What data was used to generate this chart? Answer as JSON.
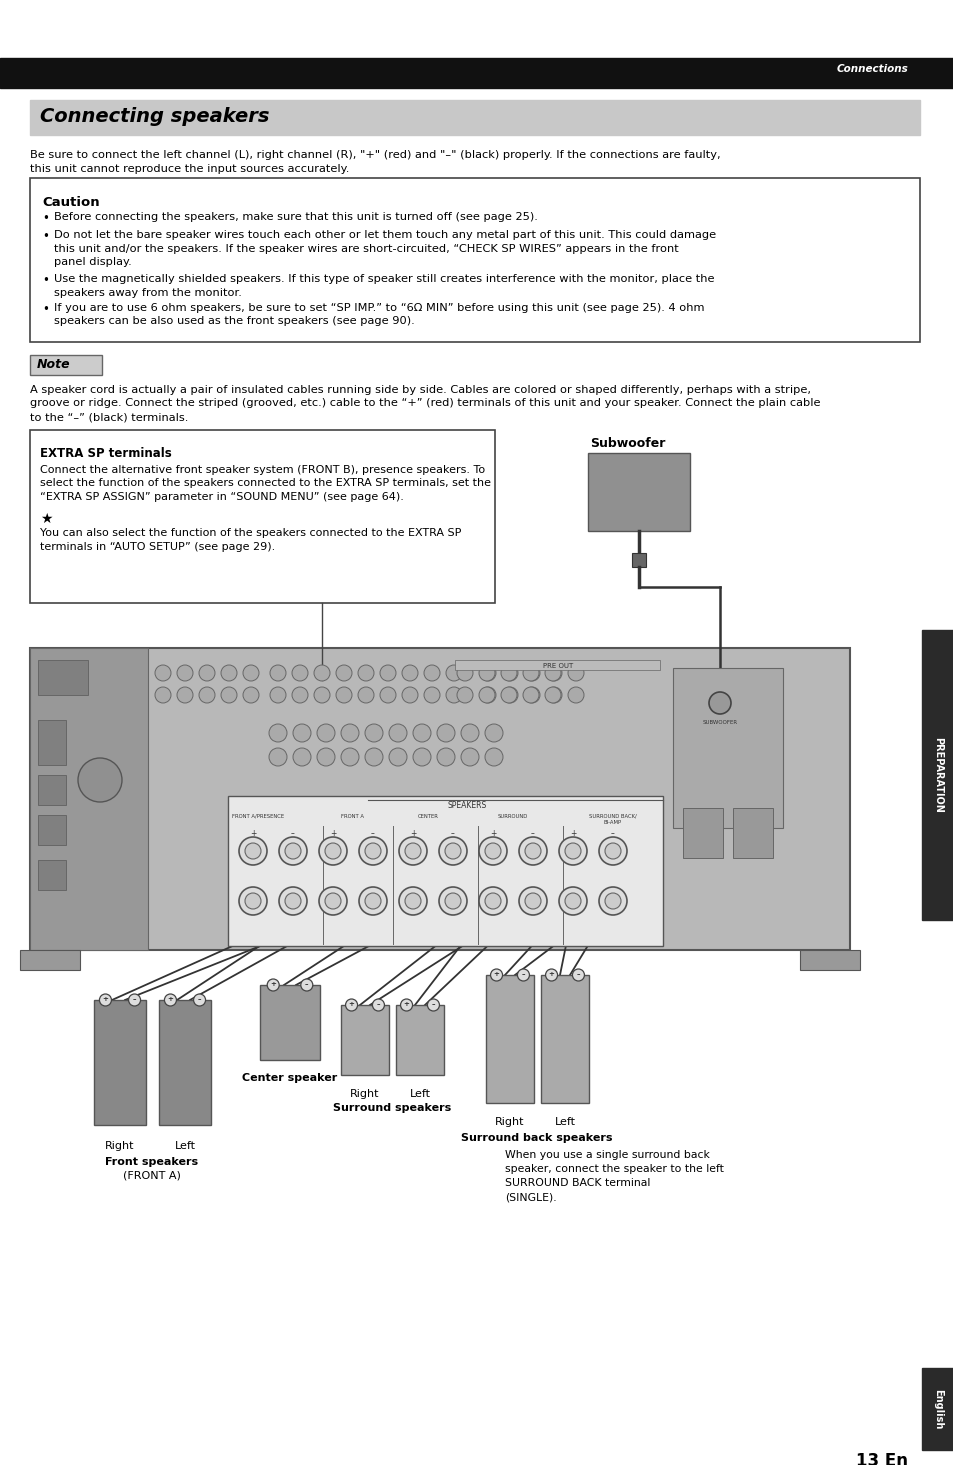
{
  "page_bg": "#ffffff",
  "top_bar_color": "#111111",
  "top_bar_text": "Connections",
  "section_title": "Connecting speakers",
  "section_title_bg": "#c8c8c8",
  "body_text1": "Be sure to connect the left channel (L), right channel (R), \"+\" (red) and \"–\" (black) properly. If the connections are faulty,",
  "body_text2": "this unit cannot reproduce the input sources accurately.",
  "caution_title": "Caution",
  "caution_b1": "Before connecting the speakers, make sure that this unit is turned off (see page 25).",
  "caution_b2": "Do not let the bare speaker wires touch each other or let them touch any metal part of this unit. This could damage",
  "caution_b2b": "this unit and/or the speakers. If the speaker wires are short-circuited, “CHECK SP WIRES” appears in the front",
  "caution_b2c": "panel display.",
  "caution_b3": "Use the magnetically shielded speakers. If this type of speaker still creates interference with the monitor, place the",
  "caution_b3b": "speakers away from the monitor.",
  "caution_b4": "If you are to use 6 ohm speakers, be sure to set “SP IMP.” to “6Ω MIN” before using this unit (see page 25). 4 ohm",
  "caution_b4b": "speakers can be also used as the front speakers (see page 90).",
  "note_title": "Note",
  "note_l1": "A speaker cord is actually a pair of insulated cables running side by side. Cables are colored or shaped differently, perhaps with a stripe,",
  "note_l2": "groove or ridge. Connect the striped (grooved, etc.) cable to the “+” (red) terminals of this unit and your speaker. Connect the plain cable",
  "note_l3": "to the “–” (black) terminals.",
  "extra_title": "EXTRA SP terminals",
  "extra_l1": "Connect the alternative front speaker system (FRONT B), presence speakers. To",
  "extra_l2": "select the function of the speakers connected to the EXTRA SP terminals, set the",
  "extra_l3": "“EXTRA SP ASSIGN” parameter in “SOUND MENU” (see page 64).",
  "extra_l4": "★",
  "extra_l5": "You can also select the function of the speakers connected to the EXTRA SP",
  "extra_l6": "terminals in “AUTO SETUP” (see page 29).",
  "subwoofer_label": "Subwoofer",
  "preparation_label": "PREPARATION",
  "english_label": "English",
  "page_number": "13 En",
  "lbl_right": "Right",
  "lbl_left": "Left",
  "lbl_front": "Front speakers",
  "lbl_front2": "(FRONT A)",
  "lbl_center": "Center speaker",
  "lbl_surround": "Surround speakers",
  "lbl_back": "Surround back speakers",
  "lbl_back_note": "When you use a single surround back\nspeaker, connect the speaker to the left\nSURROUND BACK terminal\n(SINGLE)."
}
